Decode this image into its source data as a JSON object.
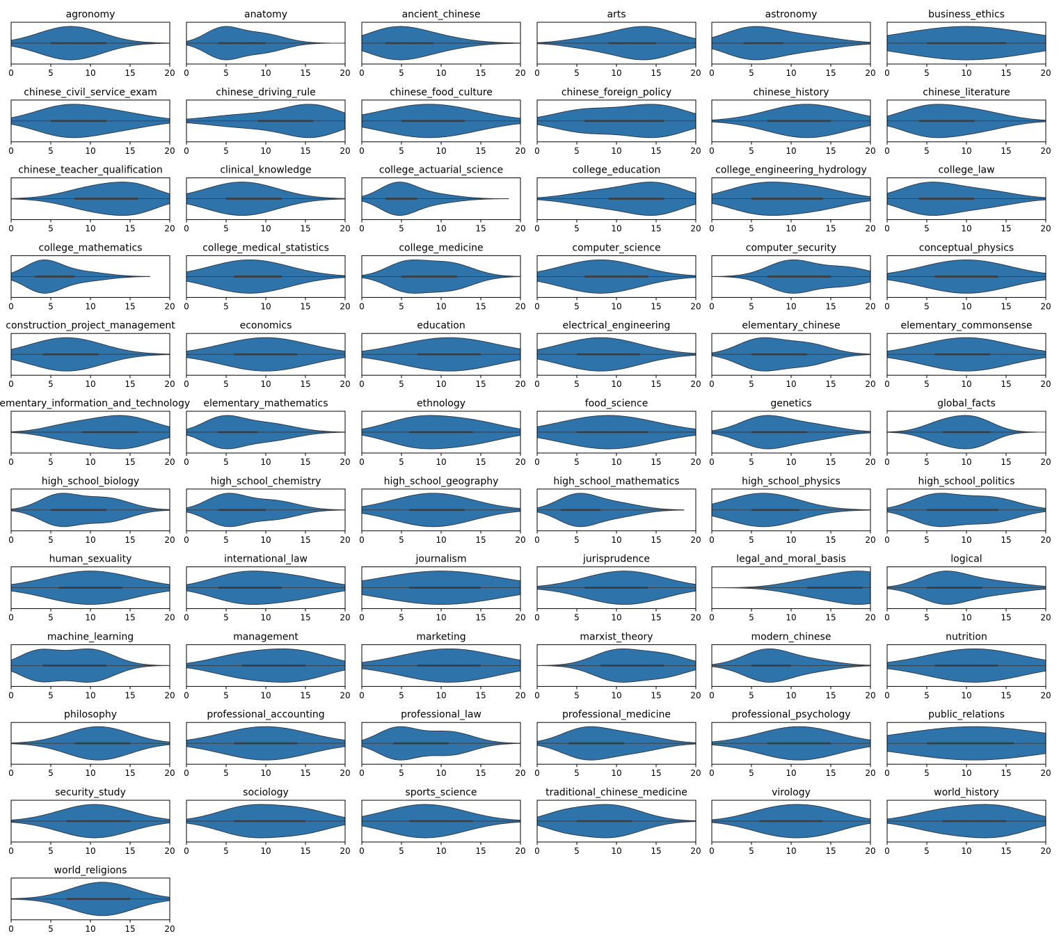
{
  "chart_data": {
    "type": "violin",
    "title": "",
    "xlabel": "",
    "ylabel": "",
    "xlim": [
      0,
      20
    ],
    "x_ticks": [
      0,
      5,
      10,
      15,
      20
    ],
    "color": "#2f73ab",
    "edge_color": "#2b3440",
    "grid": false,
    "layout": {
      "columns": 6,
      "rows": 12
    },
    "panels": [
      {
        "name": "agronomy",
        "min": 0,
        "max": 20,
        "q1": 5,
        "q3": 12,
        "peaks": [
          [
            7.5,
            1.0,
            4.0
          ]
        ]
      },
      {
        "name": "anatomy",
        "min": 0,
        "max": 20,
        "q1": 4,
        "q3": 10,
        "peaks": [
          [
            4.5,
            1.0,
            2.2
          ],
          [
            9.5,
            0.65,
            2.8
          ]
        ]
      },
      {
        "name": "ancient_chinese",
        "min": 0,
        "max": 20,
        "q1": 3,
        "q3": 9,
        "peaks": [
          [
            4.0,
            1.0,
            3.5
          ],
          [
            9.0,
            0.45,
            4.0
          ]
        ]
      },
      {
        "name": "arts",
        "min": 0,
        "max": 20,
        "q1": 9,
        "q3": 15,
        "peaks": [
          [
            13.5,
            1.0,
            4.0
          ],
          [
            6.0,
            0.2,
            3.0
          ]
        ]
      },
      {
        "name": "astronomy",
        "min": 0,
        "max": 20,
        "q1": 4,
        "q3": 9,
        "peaks": [
          [
            5.0,
            1.0,
            3.5
          ],
          [
            12.0,
            0.45,
            4.0
          ]
        ]
      },
      {
        "name": "business_ethics",
        "min": 0,
        "max": 20,
        "q1": 5,
        "q3": 15,
        "peaks": [
          [
            10.0,
            1.0,
            8.0
          ]
        ]
      },
      {
        "name": "chinese_civil_service_exam",
        "min": 0,
        "max": 20,
        "q1": 5,
        "q3": 12,
        "peaks": [
          [
            7.0,
            1.0,
            4.0
          ],
          [
            14.0,
            0.45,
            4.0
          ]
        ]
      },
      {
        "name": "chinese_driving_rule",
        "min": 0,
        "max": 20,
        "q1": 9,
        "q3": 16,
        "peaks": [
          [
            16.0,
            1.0,
            3.5
          ],
          [
            8.0,
            0.45,
            5.0
          ]
        ]
      },
      {
        "name": "chinese_food_culture",
        "min": 0,
        "max": 20,
        "q1": 5,
        "q3": 13,
        "peaks": [
          [
            8.5,
            1.0,
            6.0
          ]
        ]
      },
      {
        "name": "chinese_foreign_policy",
        "min": 0,
        "max": 20,
        "q1": 6,
        "q3": 16,
        "peaks": [
          [
            15.0,
            1.0,
            4.0
          ],
          [
            6.0,
            0.7,
            4.0
          ]
        ]
      },
      {
        "name": "chinese_history",
        "min": 0,
        "max": 20,
        "q1": 7,
        "q3": 15,
        "peaks": [
          [
            12.0,
            1.0,
            5.0
          ]
        ]
      },
      {
        "name": "chinese_literature",
        "min": 0,
        "max": 20,
        "q1": 4,
        "q3": 11,
        "peaks": [
          [
            5.0,
            1.0,
            3.5
          ],
          [
            11.0,
            0.75,
            4.0
          ]
        ]
      },
      {
        "name": "chinese_teacher_qualification",
        "min": 0,
        "max": 20,
        "q1": 8,
        "q3": 16,
        "peaks": [
          [
            11.0,
            1.0,
            4.0
          ],
          [
            16.0,
            0.8,
            3.0
          ]
        ]
      },
      {
        "name": "clinical_knowledge",
        "min": 0,
        "max": 20,
        "q1": 5,
        "q3": 12,
        "peaks": [
          [
            7.0,
            1.0,
            4.5
          ]
        ]
      },
      {
        "name": "college_actuarial_science",
        "min": 0,
        "max": 18.5,
        "q1": 3,
        "q3": 7,
        "peaks": [
          [
            4.5,
            1.0,
            2.3
          ],
          [
            9.0,
            0.3,
            3.0
          ]
        ]
      },
      {
        "name": "college_education",
        "min": 0,
        "max": 20,
        "q1": 9,
        "q3": 16,
        "peaks": [
          [
            15.0,
            1.0,
            3.5
          ],
          [
            8.0,
            0.5,
            4.0
          ]
        ]
      },
      {
        "name": "college_engineering_hydrology",
        "min": 0,
        "max": 20,
        "q1": 5,
        "q3": 14,
        "peaks": [
          [
            6.0,
            1.0,
            4.0
          ],
          [
            13.0,
            0.7,
            4.0
          ]
        ]
      },
      {
        "name": "college_law",
        "min": 0,
        "max": 20,
        "q1": 4,
        "q3": 11,
        "peaks": [
          [
            5.0,
            1.0,
            3.5
          ],
          [
            12.0,
            0.55,
            4.0
          ]
        ]
      },
      {
        "name": "college_mathematics",
        "min": 0,
        "max": 17.5,
        "q1": 3,
        "q3": 8,
        "peaks": [
          [
            4.0,
            1.0,
            2.3
          ],
          [
            9.0,
            0.3,
            3.0
          ]
        ]
      },
      {
        "name": "college_medical_statistics",
        "min": 0,
        "max": 20,
        "q1": 6,
        "q3": 12,
        "peaks": [
          [
            8.0,
            1.0,
            5.0
          ]
        ]
      },
      {
        "name": "college_medicine",
        "min": 0,
        "max": 20,
        "q1": 5,
        "q3": 12,
        "peaks": [
          [
            5.5,
            0.95,
            2.5
          ],
          [
            11.0,
            0.95,
            3.0
          ]
        ]
      },
      {
        "name": "computer_science",
        "min": 0,
        "max": 20,
        "q1": 6,
        "q3": 14,
        "peaks": [
          [
            8.0,
            1.0,
            5.0
          ]
        ]
      },
      {
        "name": "computer_security",
        "min": 0,
        "max": 20,
        "q1": 7,
        "q3": 15,
        "peaks": [
          [
            10.0,
            1.0,
            3.0
          ],
          [
            17.0,
            0.55,
            3.0
          ]
        ]
      },
      {
        "name": "conceptual_physics",
        "min": 0,
        "max": 20,
        "q1": 6,
        "q3": 14,
        "peaks": [
          [
            10.0,
            1.0,
            5.5
          ]
        ]
      },
      {
        "name": "construction_project_management",
        "min": 0,
        "max": 20,
        "q1": 4,
        "q3": 11,
        "peaks": [
          [
            7.0,
            1.0,
            4.5
          ]
        ]
      },
      {
        "name": "economics",
        "min": 0,
        "max": 20,
        "q1": 6,
        "q3": 14,
        "peaks": [
          [
            10.0,
            1.0,
            5.5
          ]
        ]
      },
      {
        "name": "education",
        "min": 0,
        "max": 20,
        "q1": 7,
        "q3": 15,
        "peaks": [
          [
            11.0,
            1.0,
            6.0
          ]
        ]
      },
      {
        "name": "electrical_engineering",
        "min": 0,
        "max": 20,
        "q1": 5,
        "q3": 13,
        "peaks": [
          [
            8.0,
            1.0,
            5.0
          ]
        ]
      },
      {
        "name": "elementary_chinese",
        "min": 0,
        "max": 20,
        "q1": 5,
        "q3": 12,
        "peaks": [
          [
            6.0,
            1.0,
            2.8
          ],
          [
            12.0,
            0.7,
            3.0
          ]
        ]
      },
      {
        "name": "elementary_commonsense",
        "min": 0,
        "max": 20,
        "q1": 6,
        "q3": 13,
        "peaks": [
          [
            10.0,
            1.0,
            5.5
          ]
        ]
      },
      {
        "name": "elementary_information_and_technology",
        "min": 0,
        "max": 20,
        "q1": 9,
        "q3": 16,
        "peaks": [
          [
            14.0,
            1.0,
            4.0
          ],
          [
            7.0,
            0.35,
            3.0
          ]
        ]
      },
      {
        "name": "elementary_mathematics",
        "min": 0,
        "max": 20,
        "q1": 4,
        "q3": 9,
        "peaks": [
          [
            4.5,
            1.0,
            2.5
          ],
          [
            10.0,
            0.65,
            3.5
          ]
        ]
      },
      {
        "name": "ethnology",
        "min": 0,
        "max": 20,
        "q1": 6,
        "q3": 14,
        "peaks": [
          [
            7.0,
            1.0,
            4.0
          ],
          [
            14.0,
            0.7,
            4.0
          ]
        ]
      },
      {
        "name": "food_science",
        "min": 0,
        "max": 20,
        "q1": 5,
        "q3": 14,
        "peaks": [
          [
            9.0,
            1.0,
            6.0
          ]
        ]
      },
      {
        "name": "genetics",
        "min": 0,
        "max": 20,
        "q1": 5,
        "q3": 12,
        "peaks": [
          [
            6.5,
            1.0,
            3.0
          ],
          [
            12.5,
            0.5,
            3.5
          ]
        ]
      },
      {
        "name": "global_facts",
        "min": 0,
        "max": 20,
        "q1": 7,
        "q3": 13,
        "peaks": [
          [
            11.0,
            1.0,
            2.5
          ],
          [
            7.0,
            0.7,
            2.5
          ]
        ]
      },
      {
        "name": "high_school_biology",
        "min": 0,
        "max": 20,
        "q1": 5,
        "q3": 12,
        "peaks": [
          [
            6.0,
            1.0,
            2.5
          ],
          [
            12.0,
            0.8,
            3.0
          ]
        ]
      },
      {
        "name": "high_school_chemistry",
        "min": 0,
        "max": 20,
        "q1": 4,
        "q3": 10,
        "peaks": [
          [
            5.0,
            1.0,
            2.5
          ],
          [
            11.0,
            0.6,
            3.0
          ]
        ]
      },
      {
        "name": "high_school_geography",
        "min": 0,
        "max": 20,
        "q1": 6,
        "q3": 13,
        "peaks": [
          [
            9.0,
            1.0,
            5.0
          ]
        ]
      },
      {
        "name": "high_school_mathematics",
        "min": 0,
        "max": 18.5,
        "q1": 3,
        "q3": 8,
        "peaks": [
          [
            5.0,
            1.0,
            2.5
          ],
          [
            10.0,
            0.45,
            3.0
          ]
        ]
      },
      {
        "name": "high_school_physics",
        "min": 0,
        "max": 20,
        "q1": 5,
        "q3": 11,
        "peaks": [
          [
            6.5,
            1.0,
            4.5
          ]
        ]
      },
      {
        "name": "high_school_politics",
        "min": 0,
        "max": 20,
        "q1": 5,
        "q3": 14,
        "peaks": [
          [
            6.0,
            1.0,
            3.0
          ],
          [
            13.0,
            0.85,
            3.5
          ]
        ]
      },
      {
        "name": "human_sexuality",
        "min": 0,
        "max": 20,
        "q1": 6,
        "q3": 14,
        "peaks": [
          [
            10.0,
            1.0,
            5.5
          ]
        ]
      },
      {
        "name": "international_law",
        "min": 0,
        "max": 20,
        "q1": 4,
        "q3": 12,
        "peaks": [
          [
            7.0,
            1.0,
            4.0
          ],
          [
            14.0,
            0.65,
            4.0
          ]
        ]
      },
      {
        "name": "journalism",
        "min": 0,
        "max": 20,
        "q1": 6,
        "q3": 15,
        "peaks": [
          [
            10.0,
            1.0,
            7.5
          ]
        ]
      },
      {
        "name": "jurisprudence",
        "min": 0,
        "max": 20,
        "q1": 6,
        "q3": 14,
        "peaks": [
          [
            11.0,
            1.0,
            5.0
          ]
        ]
      },
      {
        "name": "legal_and_moral_basis",
        "min": 0,
        "max": 20,
        "q1": 12,
        "q3": 19,
        "peaks": [
          [
            19.0,
            1.0,
            4.0
          ],
          [
            12.0,
            0.35,
            3.5
          ]
        ]
      },
      {
        "name": "logical",
        "min": 0,
        "max": 20,
        "q1": 5,
        "q3": 12,
        "peaks": [
          [
            7.0,
            1.0,
            3.0
          ],
          [
            13.0,
            0.45,
            4.0
          ]
        ]
      },
      {
        "name": "machine_learning",
        "min": 0,
        "max": 20,
        "q1": 4,
        "q3": 12,
        "peaks": [
          [
            3.5,
            0.9,
            2.5
          ],
          [
            10.0,
            1.0,
            3.0
          ]
        ]
      },
      {
        "name": "management",
        "min": 0,
        "max": 20,
        "q1": 7,
        "q3": 15,
        "peaks": [
          [
            14.0,
            1.0,
            4.0
          ],
          [
            7.0,
            0.75,
            4.0
          ]
        ]
      },
      {
        "name": "marketing",
        "min": 0,
        "max": 20,
        "q1": 7,
        "q3": 15,
        "peaks": [
          [
            11.0,
            1.0,
            6.0
          ]
        ]
      },
      {
        "name": "marxist_theory",
        "min": 0,
        "max": 20,
        "q1": 8,
        "q3": 16,
        "peaks": [
          [
            10.0,
            1.0,
            3.0
          ],
          [
            16.0,
            0.7,
            3.0
          ]
        ]
      },
      {
        "name": "modern_chinese",
        "min": 0,
        "max": 20,
        "q1": 5,
        "q3": 10,
        "peaks": [
          [
            7.0,
            1.0,
            3.0
          ],
          [
            13.0,
            0.3,
            3.0
          ]
        ]
      },
      {
        "name": "nutrition",
        "min": 0,
        "max": 20,
        "q1": 6,
        "q3": 14,
        "peaks": [
          [
            11.0,
            1.0,
            6.0
          ]
        ]
      },
      {
        "name": "philosophy",
        "min": 0,
        "max": 20,
        "q1": 8,
        "q3": 15,
        "peaks": [
          [
            11.0,
            1.0,
            4.0
          ]
        ]
      },
      {
        "name": "professional_accounting",
        "min": 0,
        "max": 20,
        "q1": 6,
        "q3": 14,
        "peaks": [
          [
            10.0,
            1.0,
            5.5
          ]
        ]
      },
      {
        "name": "professional_law",
        "min": 0,
        "max": 20,
        "q1": 4,
        "q3": 11,
        "peaks": [
          [
            4.5,
            1.0,
            2.5
          ],
          [
            11.0,
            0.75,
            3.0
          ]
        ]
      },
      {
        "name": "professional_medicine",
        "min": 0,
        "max": 20,
        "q1": 4,
        "q3": 11,
        "peaks": [
          [
            6.0,
            1.0,
            3.0
          ],
          [
            12.0,
            0.6,
            3.5
          ]
        ]
      },
      {
        "name": "professional_psychology",
        "min": 0,
        "max": 20,
        "q1": 7,
        "q3": 15,
        "peaks": [
          [
            11.0,
            1.0,
            5.0
          ]
        ]
      },
      {
        "name": "public_relations",
        "min": 0,
        "max": 20,
        "q1": 5,
        "q3": 16,
        "peaks": [
          [
            11.0,
            1.0,
            9.0
          ]
        ]
      },
      {
        "name": "security_study",
        "min": 0,
        "max": 20,
        "q1": 7,
        "q3": 15,
        "peaks": [
          [
            10.5,
            1.0,
            4.5
          ]
        ]
      },
      {
        "name": "sociology",
        "min": 0,
        "max": 20,
        "q1": 6,
        "q3": 15,
        "peaks": [
          [
            8.0,
            1.0,
            4.0
          ],
          [
            15.0,
            0.65,
            3.5
          ]
        ]
      },
      {
        "name": "sports_science",
        "min": 0,
        "max": 20,
        "q1": 6,
        "q3": 14,
        "peaks": [
          [
            8.0,
            1.0,
            5.0
          ]
        ]
      },
      {
        "name": "traditional_chinese_medicine",
        "min": 0,
        "max": 20,
        "q1": 5,
        "q3": 12,
        "peaks": [
          [
            9.0,
            1.0,
            4.0
          ],
          [
            3.0,
            0.35,
            2.5
          ]
        ]
      },
      {
        "name": "virology",
        "min": 0,
        "max": 20,
        "q1": 6,
        "q3": 14,
        "peaks": [
          [
            8.5,
            1.0,
            4.0
          ],
          [
            14.0,
            0.7,
            3.5
          ]
        ]
      },
      {
        "name": "world_history",
        "min": 0,
        "max": 20,
        "q1": 7,
        "q3": 15,
        "peaks": [
          [
            14.0,
            1.0,
            4.0
          ],
          [
            7.0,
            0.7,
            4.0
          ]
        ]
      },
      {
        "name": "world_religions",
        "min": 0,
        "max": 20,
        "q1": 7,
        "q3": 15,
        "peaks": [
          [
            11.5,
            1.0,
            4.0
          ]
        ]
      }
    ]
  }
}
